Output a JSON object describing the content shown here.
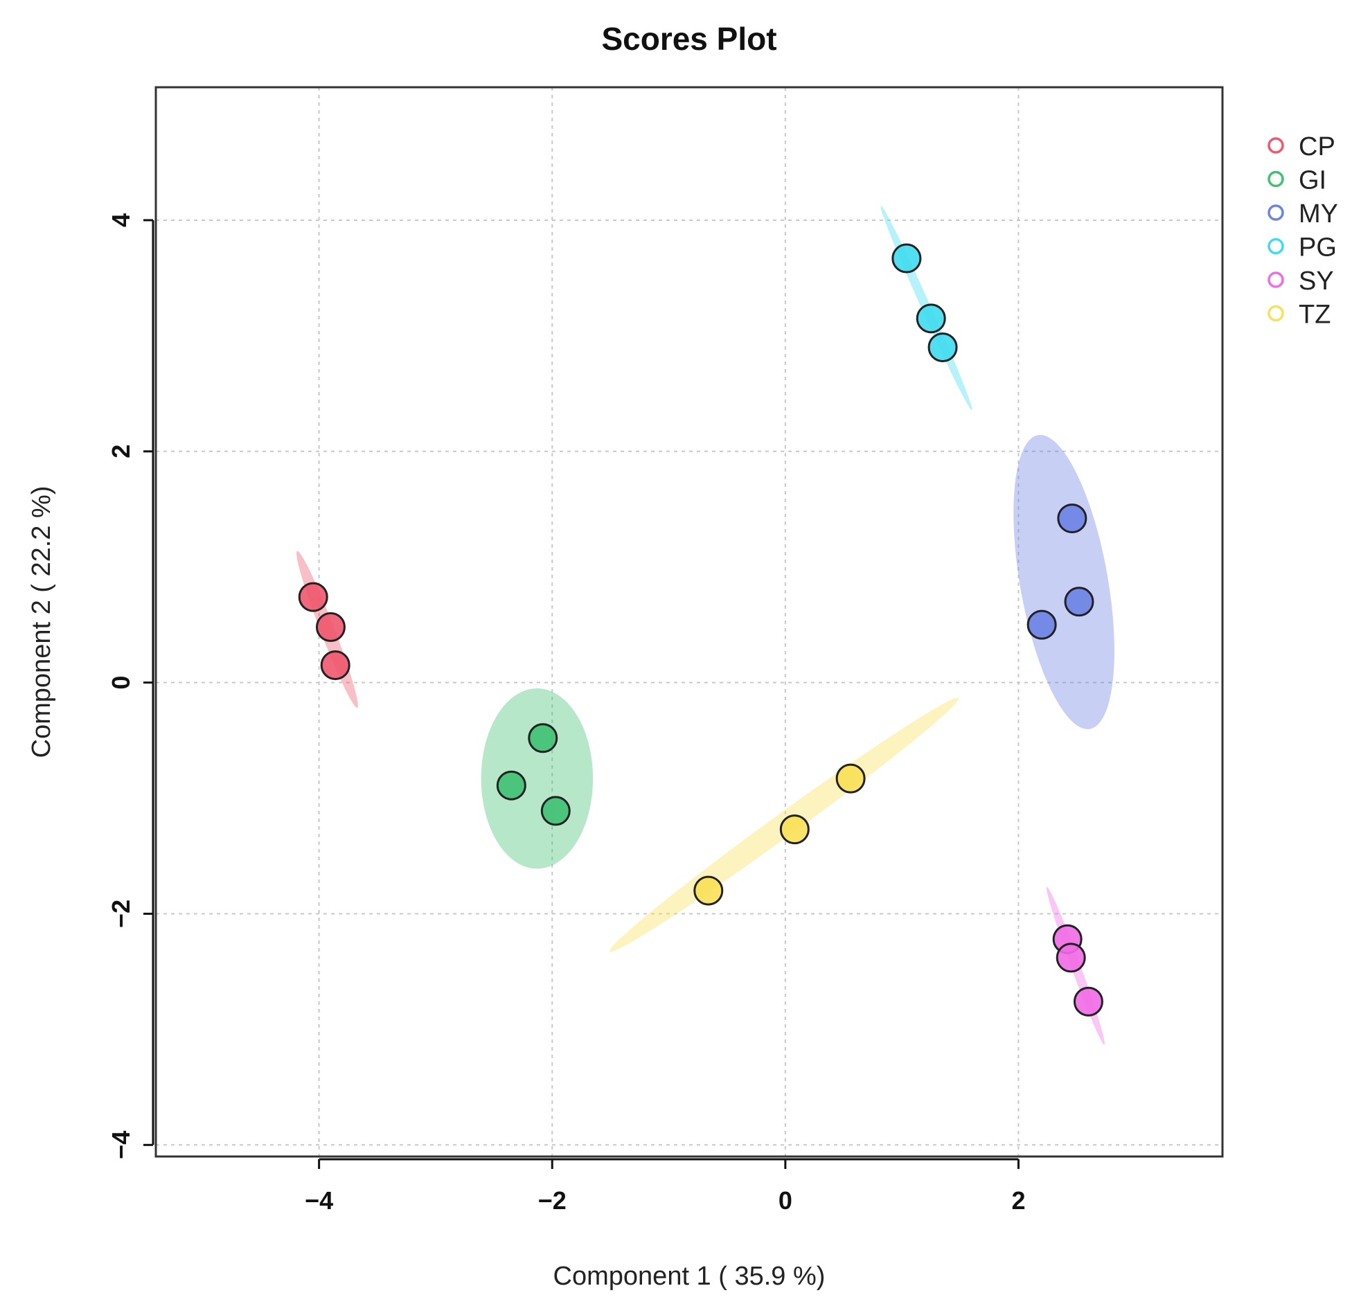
{
  "chart_data": {
    "type": "scatter",
    "title": "Scores Plot",
    "xlabel": "Component 1 ( 35.9 %)",
    "ylabel": "Component 2 ( 22.2 %)",
    "xlim": [
      -5.4,
      3.75
    ],
    "ylim": [
      -4.1,
      5.15
    ],
    "xticks": [
      -4,
      -2,
      0,
      2
    ],
    "yticks": [
      -4,
      -2,
      0,
      2,
      4
    ],
    "grid": true,
    "legend_position": "right",
    "series": [
      {
        "name": "CP",
        "color": "#f0566d",
        "points": [
          [
            -4.05,
            0.74
          ],
          [
            -3.9,
            0.48
          ],
          [
            -3.86,
            0.15
          ]
        ],
        "ellipse": {
          "center": [
            -3.93,
            0.46
          ],
          "rx": 0.72,
          "ry": 0.06,
          "angle_deg": -69
        }
      },
      {
        "name": "GI",
        "color": "#3fc172",
        "points": [
          [
            -2.08,
            -0.48
          ],
          [
            -2.35,
            -0.89
          ],
          [
            -1.97,
            -1.11
          ]
        ],
        "ellipse": {
          "center": [
            -2.13,
            -0.83
          ],
          "rx": 0.48,
          "ry": 0.78,
          "angle_deg": 0
        }
      },
      {
        "name": "MY",
        "color": "#6b82e6",
        "points": [
          [
            2.46,
            1.42
          ],
          [
            2.52,
            0.7
          ],
          [
            2.2,
            0.5
          ]
        ],
        "ellipse": {
          "center": [
            2.39,
            0.87
          ],
          "rx": 1.28,
          "ry": 0.38,
          "angle_deg": -80
        }
      },
      {
        "name": "PG",
        "color": "#3fdcef",
        "points": [
          [
            1.04,
            3.67
          ],
          [
            1.25,
            3.15
          ],
          [
            1.35,
            2.9
          ]
        ],
        "ellipse": {
          "center": [
            1.21,
            3.24
          ],
          "rx": 0.96,
          "ry": 0.04,
          "angle_deg": -66
        }
      },
      {
        "name": "SY",
        "color": "#f16ae5",
        "points": [
          [
            2.42,
            -2.22
          ],
          [
            2.45,
            -2.38
          ],
          [
            2.6,
            -2.76
          ]
        ],
        "ellipse": {
          "center": [
            2.49,
            -2.45
          ],
          "rx": 0.72,
          "ry": 0.04,
          "angle_deg": -70
        }
      },
      {
        "name": "TZ",
        "color": "#f9e057",
        "points": [
          [
            -0.66,
            -1.8
          ],
          [
            0.08,
            -1.27
          ],
          [
            0.56,
            -0.83
          ]
        ],
        "ellipse": {
          "center": [
            -0.01,
            -1.23
          ],
          "rx": 1.85,
          "ry": 0.1,
          "angle_deg": 36
        }
      }
    ]
  }
}
